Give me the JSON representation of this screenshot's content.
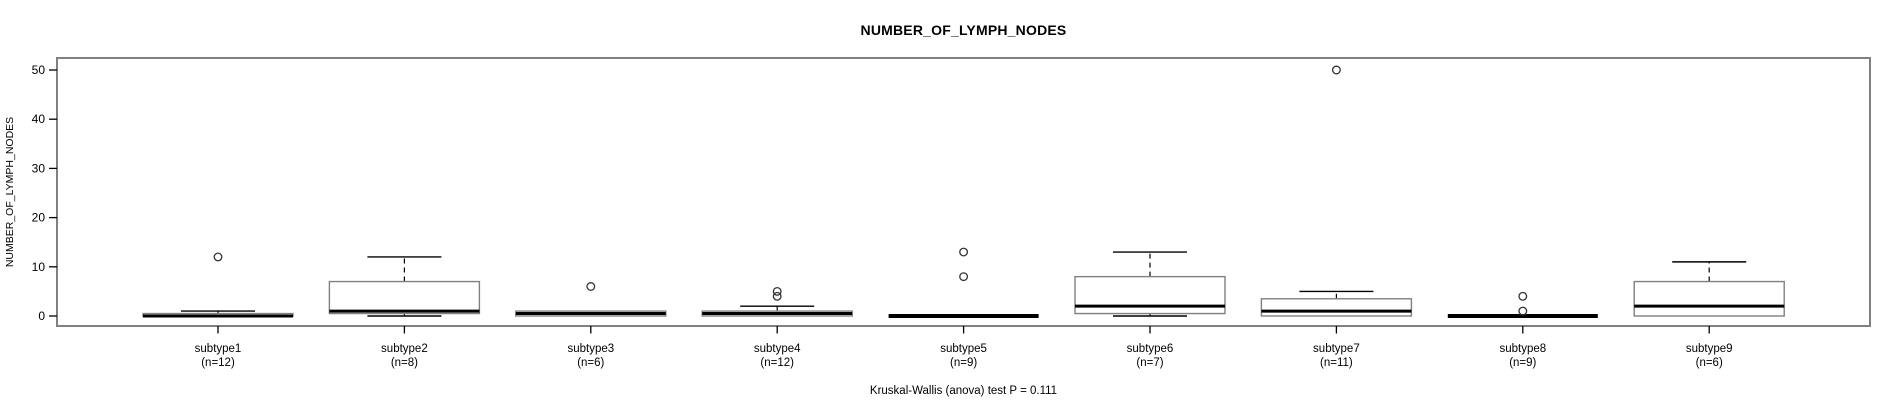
{
  "title": {
    "text": "NUMBER_OF_LYMPH_NODES"
  },
  "y_axis": {
    "label": "NUMBER_OF_LYMPH_NODES"
  },
  "footer": {
    "caption": "Kruskal-Wallis (anova) test P = 0.111"
  },
  "chart_data": {
    "type": "boxplot",
    "title": "NUMBER_OF_LYMPH_NODES",
    "xlabel": "",
    "ylabel": "NUMBER_OF_LYMPH_NODES",
    "ylim": [
      0,
      50
    ],
    "yticks": [
      0,
      10,
      20,
      30,
      40,
      50
    ],
    "grid": false,
    "legend_position": "none",
    "annotation": "Kruskal-Wallis (anova) test P = 0.111",
    "categories": [
      "subtype1",
      "subtype2",
      "subtype3",
      "subtype4",
      "subtype5",
      "subtype6",
      "subtype7",
      "subtype8",
      "subtype9"
    ],
    "series": [
      {
        "label": "subtype1",
        "n": 12,
        "count_label": "(n=12)",
        "low": 0,
        "q1": 0,
        "median": 0,
        "q3": 0.5,
        "high": 1,
        "outliers": [
          12
        ]
      },
      {
        "label": "subtype2",
        "n": 8,
        "count_label": "(n=8)",
        "low": 0,
        "q1": 0.5,
        "median": 1,
        "q3": 7,
        "high": 12,
        "outliers": []
      },
      {
        "label": "subtype3",
        "n": 6,
        "count_label": "(n=6)",
        "low": 0,
        "q1": 0,
        "median": 0.5,
        "q3": 1,
        "high": 1,
        "outliers": [
          6
        ]
      },
      {
        "label": "subtype4",
        "n": 12,
        "count_label": "(n=12)",
        "low": 0,
        "q1": 0,
        "median": 0.5,
        "q3": 1,
        "high": 2,
        "outliers": [
          4,
          5
        ]
      },
      {
        "label": "subtype5",
        "n": 9,
        "count_label": "(n=9)",
        "low": 0,
        "q1": 0,
        "median": 0,
        "q3": 0,
        "high": 0,
        "outliers": [
          8,
          13
        ]
      },
      {
        "label": "subtype6",
        "n": 7,
        "count_label": "(n=7)",
        "low": 0,
        "q1": 0.5,
        "median": 2,
        "q3": 8,
        "high": 13,
        "outliers": []
      },
      {
        "label": "subtype7",
        "n": 11,
        "count_label": "(n=11)",
        "low": 0,
        "q1": 0,
        "median": 1,
        "q3": 3.5,
        "high": 5,
        "outliers": [
          50
        ]
      },
      {
        "label": "subtype8",
        "n": 9,
        "count_label": "(n=9)",
        "low": 0,
        "q1": 0,
        "median": 0,
        "q3": 0,
        "high": 0,
        "outliers": [
          1,
          4
        ]
      },
      {
        "label": "subtype9",
        "n": 6,
        "count_label": "(n=6)",
        "low": 0,
        "q1": 0,
        "median": 2,
        "q3": 7,
        "high": 11,
        "outliers": []
      }
    ],
    "colors": {
      "background": "#ffffff",
      "frame": "#808080",
      "box_border": "#808080",
      "box_fill": "#ffffff",
      "median": "#000000",
      "whisker": "#000000",
      "outlier": "#333333",
      "text": "#000000"
    }
  }
}
